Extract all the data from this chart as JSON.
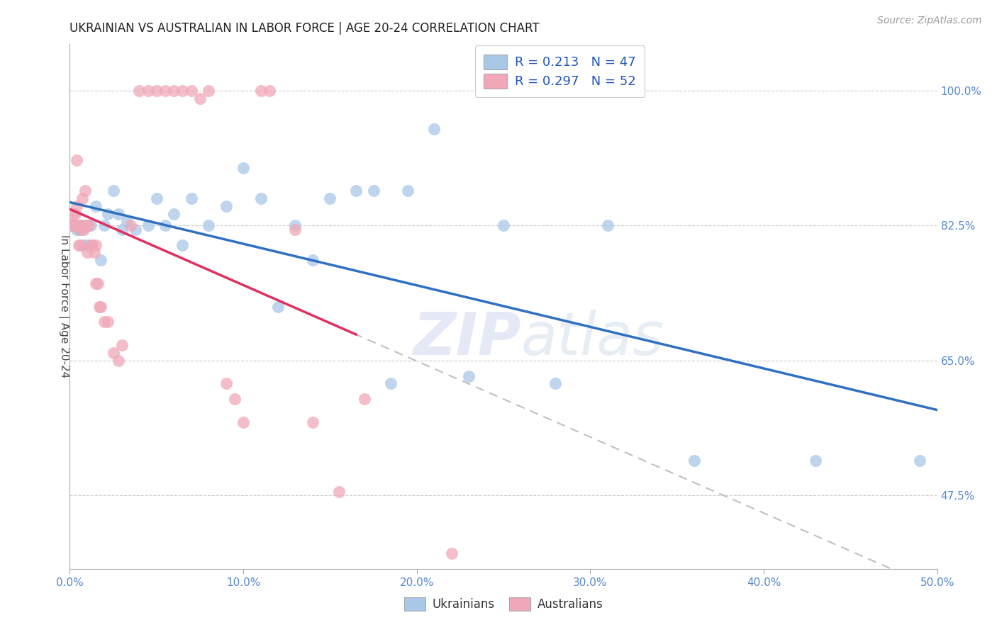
{
  "title": "UKRAINIAN VS AUSTRALIAN IN LABOR FORCE | AGE 20-24 CORRELATION CHART",
  "source": "Source: ZipAtlas.com",
  "ylabel": "In Labor Force | Age 20-24",
  "xlim": [
    0.0,
    0.5
  ],
  "ylim": [
    0.38,
    1.06
  ],
  "xtick_labels": [
    "0.0%",
    "",
    "",
    "",
    "",
    "",
    "",
    "",
    "",
    "",
    "10.0%",
    "",
    "",
    "",
    "",
    "",
    "",
    "",
    "",
    "",
    "20.0%",
    "",
    "",
    "",
    "",
    "",
    "",
    "",
    "",
    "",
    "30.0%",
    "",
    "",
    "",
    "",
    "",
    "",
    "",
    "",
    "",
    "40.0%",
    "",
    "",
    "",
    "",
    "",
    "",
    "",
    "",
    "",
    "50.0%"
  ],
  "xtick_vals": [
    0.0,
    0.01,
    0.02,
    0.03,
    0.04,
    0.05,
    0.06,
    0.07,
    0.08,
    0.09,
    0.1,
    0.11,
    0.12,
    0.13,
    0.14,
    0.15,
    0.16,
    0.17,
    0.18,
    0.19,
    0.2,
    0.21,
    0.22,
    0.23,
    0.24,
    0.25,
    0.26,
    0.27,
    0.28,
    0.29,
    0.3,
    0.31,
    0.32,
    0.33,
    0.34,
    0.35,
    0.36,
    0.37,
    0.38,
    0.39,
    0.4,
    0.41,
    0.42,
    0.43,
    0.44,
    0.45,
    0.46,
    0.47,
    0.48,
    0.49,
    0.5
  ],
  "ytick_labels": [
    "47.5%",
    "65.0%",
    "82.5%",
    "100.0%"
  ],
  "ytick_vals": [
    0.475,
    0.65,
    0.825,
    1.0
  ],
  "watermark_zip": "ZIP",
  "watermark_atlas": "atlas",
  "legend_r_blue": "R = 0.213",
  "legend_n_blue": "N = 47",
  "legend_r_pink": "R = 0.297",
  "legend_n_pink": "N = 52",
  "blue_color": "#a8c8e8",
  "pink_color": "#f0a8b8",
  "blue_line_color": "#3070c0",
  "pink_line_color": "#e03060",
  "pink_dash_color": "#d0a0b0",
  "blue_scatter": [
    [
      0.001,
      0.825
    ],
    [
      0.002,
      0.825
    ],
    [
      0.003,
      0.825
    ],
    [
      0.004,
      0.82
    ],
    [
      0.005,
      0.82
    ],
    [
      0.006,
      0.825
    ],
    [
      0.007,
      0.82
    ],
    [
      0.008,
      0.8
    ],
    [
      0.009,
      0.825
    ],
    [
      0.01,
      0.825
    ],
    [
      0.011,
      0.8
    ],
    [
      0.012,
      0.825
    ],
    [
      0.015,
      0.85
    ],
    [
      0.018,
      0.78
    ],
    [
      0.02,
      0.825
    ],
    [
      0.022,
      0.84
    ],
    [
      0.025,
      0.87
    ],
    [
      0.028,
      0.84
    ],
    [
      0.03,
      0.82
    ],
    [
      0.033,
      0.83
    ],
    [
      0.038,
      0.82
    ],
    [
      0.045,
      0.825
    ],
    [
      0.05,
      0.86
    ],
    [
      0.055,
      0.825
    ],
    [
      0.06,
      0.84
    ],
    [
      0.065,
      0.8
    ],
    [
      0.07,
      0.86
    ],
    [
      0.08,
      0.825
    ],
    [
      0.09,
      0.85
    ],
    [
      0.1,
      0.9
    ],
    [
      0.11,
      0.86
    ],
    [
      0.12,
      0.72
    ],
    [
      0.13,
      0.825
    ],
    [
      0.14,
      0.78
    ],
    [
      0.15,
      0.86
    ],
    [
      0.165,
      0.87
    ],
    [
      0.175,
      0.87
    ],
    [
      0.185,
      0.62
    ],
    [
      0.195,
      0.87
    ],
    [
      0.21,
      0.95
    ],
    [
      0.23,
      0.63
    ],
    [
      0.25,
      0.825
    ],
    [
      0.28,
      0.62
    ],
    [
      0.31,
      0.825
    ],
    [
      0.36,
      0.52
    ],
    [
      0.43,
      0.52
    ],
    [
      0.49,
      0.52
    ]
  ],
  "pink_scatter": [
    [
      0.001,
      0.825
    ],
    [
      0.002,
      0.825
    ],
    [
      0.002,
      0.84
    ],
    [
      0.003,
      0.84
    ],
    [
      0.003,
      0.825
    ],
    [
      0.004,
      0.85
    ],
    [
      0.004,
      0.91
    ],
    [
      0.005,
      0.825
    ],
    [
      0.005,
      0.8
    ],
    [
      0.006,
      0.82
    ],
    [
      0.006,
      0.8
    ],
    [
      0.007,
      0.86
    ],
    [
      0.007,
      0.825
    ],
    [
      0.008,
      0.82
    ],
    [
      0.008,
      0.825
    ],
    [
      0.009,
      0.87
    ],
    [
      0.01,
      0.825
    ],
    [
      0.01,
      0.79
    ],
    [
      0.011,
      0.825
    ],
    [
      0.012,
      0.8
    ],
    [
      0.013,
      0.8
    ],
    [
      0.014,
      0.79
    ],
    [
      0.015,
      0.75
    ],
    [
      0.015,
      0.8
    ],
    [
      0.016,
      0.75
    ],
    [
      0.017,
      0.72
    ],
    [
      0.018,
      0.72
    ],
    [
      0.02,
      0.7
    ],
    [
      0.022,
      0.7
    ],
    [
      0.025,
      0.66
    ],
    [
      0.028,
      0.65
    ],
    [
      0.03,
      0.67
    ],
    [
      0.035,
      0.825
    ],
    [
      0.04,
      1.0
    ],
    [
      0.045,
      1.0
    ],
    [
      0.05,
      1.0
    ],
    [
      0.055,
      1.0
    ],
    [
      0.06,
      1.0
    ],
    [
      0.065,
      1.0
    ],
    [
      0.07,
      1.0
    ],
    [
      0.075,
      0.99
    ],
    [
      0.08,
      1.0
    ],
    [
      0.09,
      0.62
    ],
    [
      0.095,
      0.6
    ],
    [
      0.1,
      0.57
    ],
    [
      0.11,
      1.0
    ],
    [
      0.115,
      1.0
    ],
    [
      0.13,
      0.82
    ],
    [
      0.14,
      0.57
    ],
    [
      0.155,
      0.48
    ],
    [
      0.17,
      0.6
    ],
    [
      0.22,
      0.4
    ]
  ]
}
